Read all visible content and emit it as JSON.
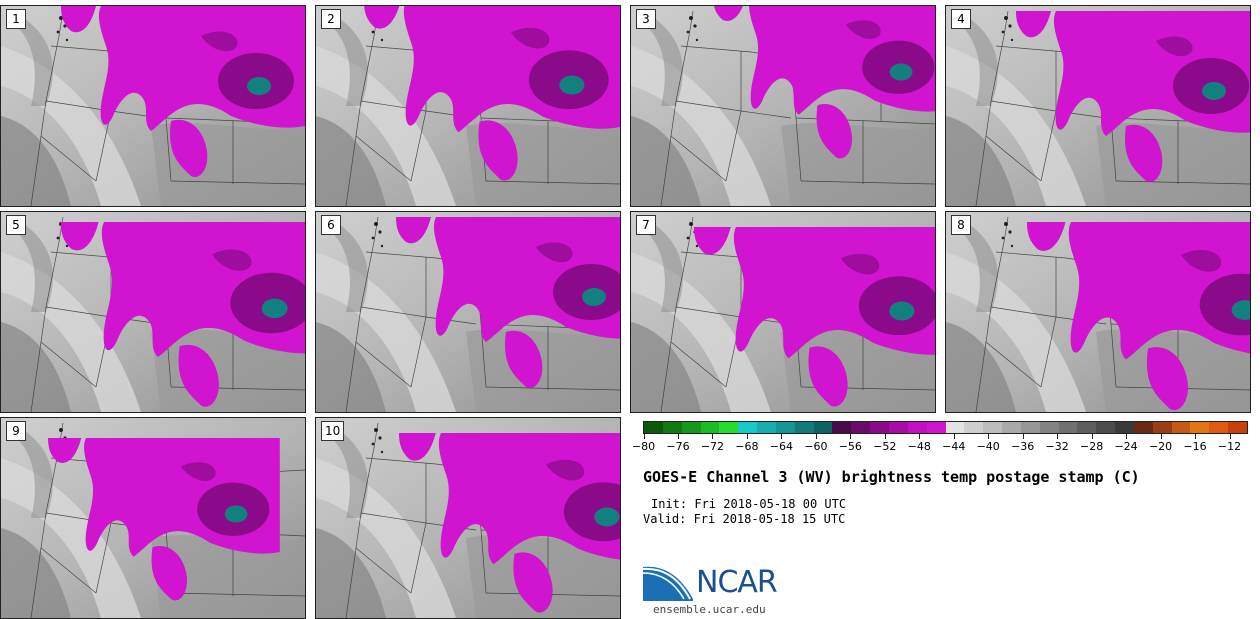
{
  "panels": [
    {
      "label": "1"
    },
    {
      "label": "2"
    },
    {
      "label": "3"
    },
    {
      "label": "4"
    },
    {
      "label": "5"
    },
    {
      "label": "6"
    },
    {
      "label": "7"
    },
    {
      "label": "8"
    },
    {
      "label": "9"
    },
    {
      "label": "10"
    }
  ],
  "colorbar": {
    "colors": [
      "#0a5a0a",
      "#0f7a12",
      "#16991b",
      "#1dbb23",
      "#26dd2d",
      "#17c9c9",
      "#16aeae",
      "#149494",
      "#117b7b",
      "#0d6363",
      "#4a0b4a",
      "#6a0a6a",
      "#8a0a8a",
      "#a80ca8",
      "#c210c2",
      "#d014d0",
      "#e2e2e2",
      "#cfcfcf",
      "#bcbcbc",
      "#a9a9a9",
      "#969696",
      "#838383",
      "#707070",
      "#5e5e5e",
      "#4c4c4c",
      "#3a3a3a",
      "#6b2a12",
      "#9c3d14",
      "#c45a16",
      "#e27515",
      "#e05a10",
      "#c8400c"
    ],
    "tick_labels": [
      "−80",
      "−76",
      "−72",
      "−68",
      "−64",
      "−60",
      "−56",
      "−52",
      "−48",
      "−44",
      "−40",
      "−36",
      "−32",
      "−28",
      "−24",
      "−20",
      "−16",
      "−12"
    ],
    "min": -80,
    "max": -10
  },
  "title": "GOES-E Channel 3 (WV) brightness temp postage stamp (C)",
  "init_line": "Init: Fri 2018-05-18 00 UTC",
  "valid_line": "Valid: Fri 2018-05-18 15 UTC",
  "logo": {
    "text": "NCAR",
    "url": "ensemble.ucar.edu"
  },
  "colors": {
    "moisture": "#d014d0",
    "moisture_dark": "#8a0a8a",
    "cold_core": "#138080"
  }
}
